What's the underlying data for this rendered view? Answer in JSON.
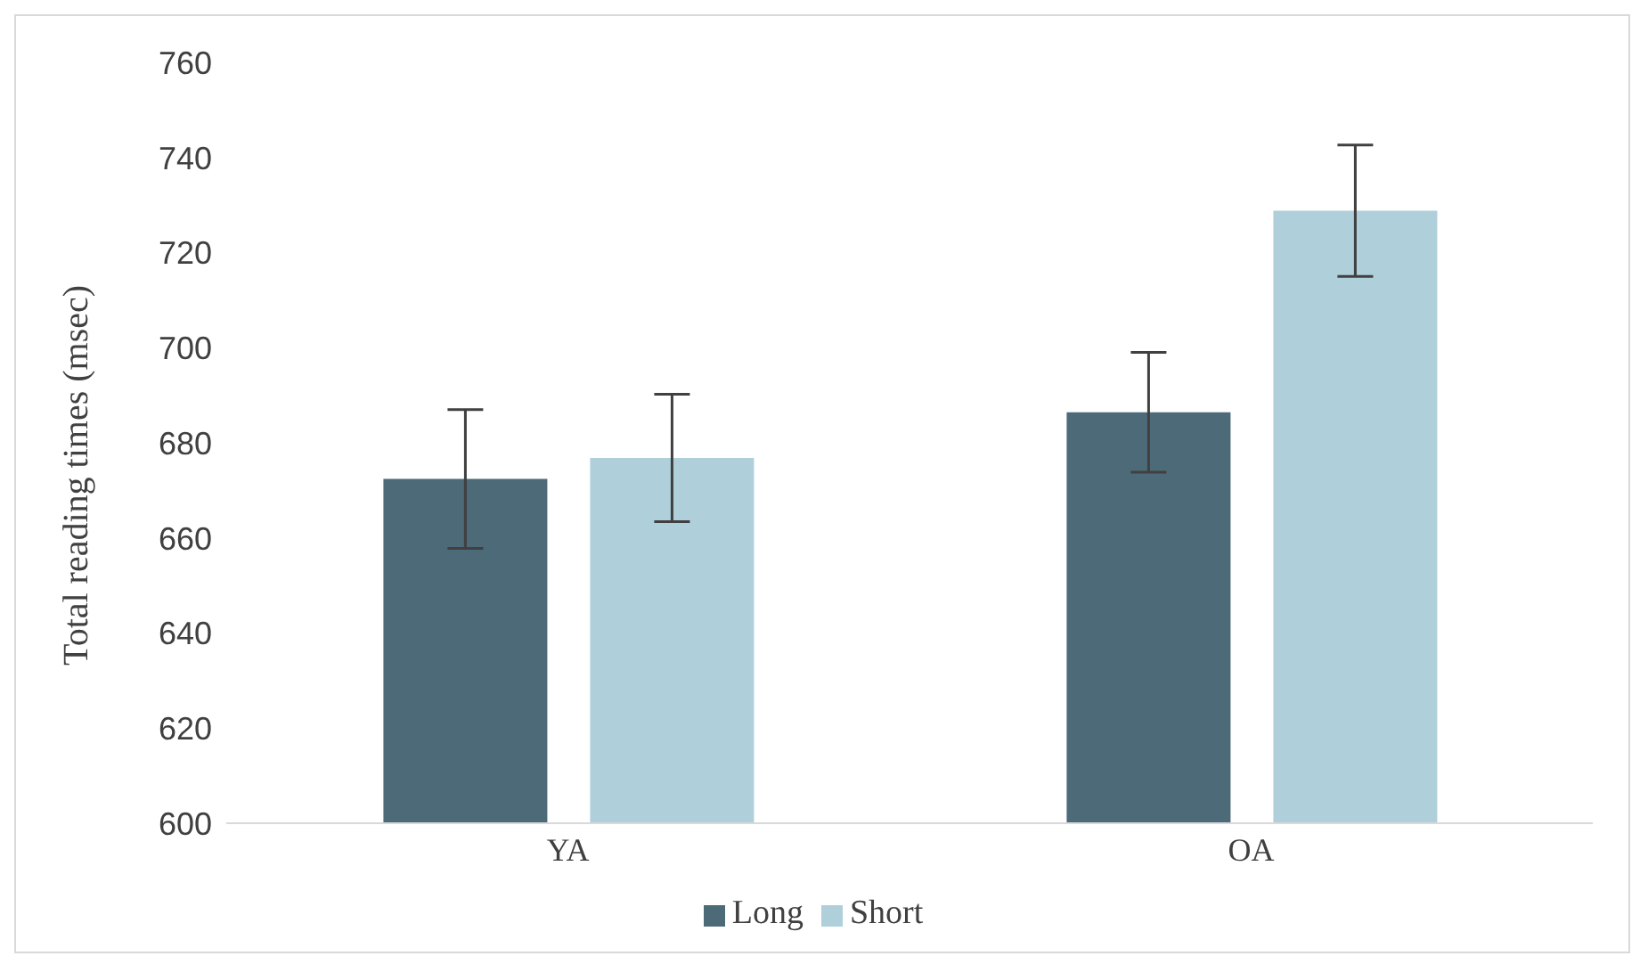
{
  "chart_data": {
    "type": "bar",
    "ylabel": "Total reading times (msec)",
    "categories": [
      "YA",
      "OA"
    ],
    "series": [
      {
        "name": "Long",
        "color": "#4d6a78",
        "values": [
          672.4,
          686.4
        ],
        "errors": [
          14.6,
          12.6
        ]
      },
      {
        "name": "Short",
        "color": "#afcfda",
        "values": [
          676.8,
          728.8
        ],
        "errors": [
          13.4,
          13.8
        ]
      }
    ],
    "ylim": [
      600,
      760
    ],
    "yticks": [
      600,
      620,
      640,
      660,
      680,
      700,
      720,
      740,
      760
    ],
    "grid": false,
    "legend": "bottom"
  }
}
